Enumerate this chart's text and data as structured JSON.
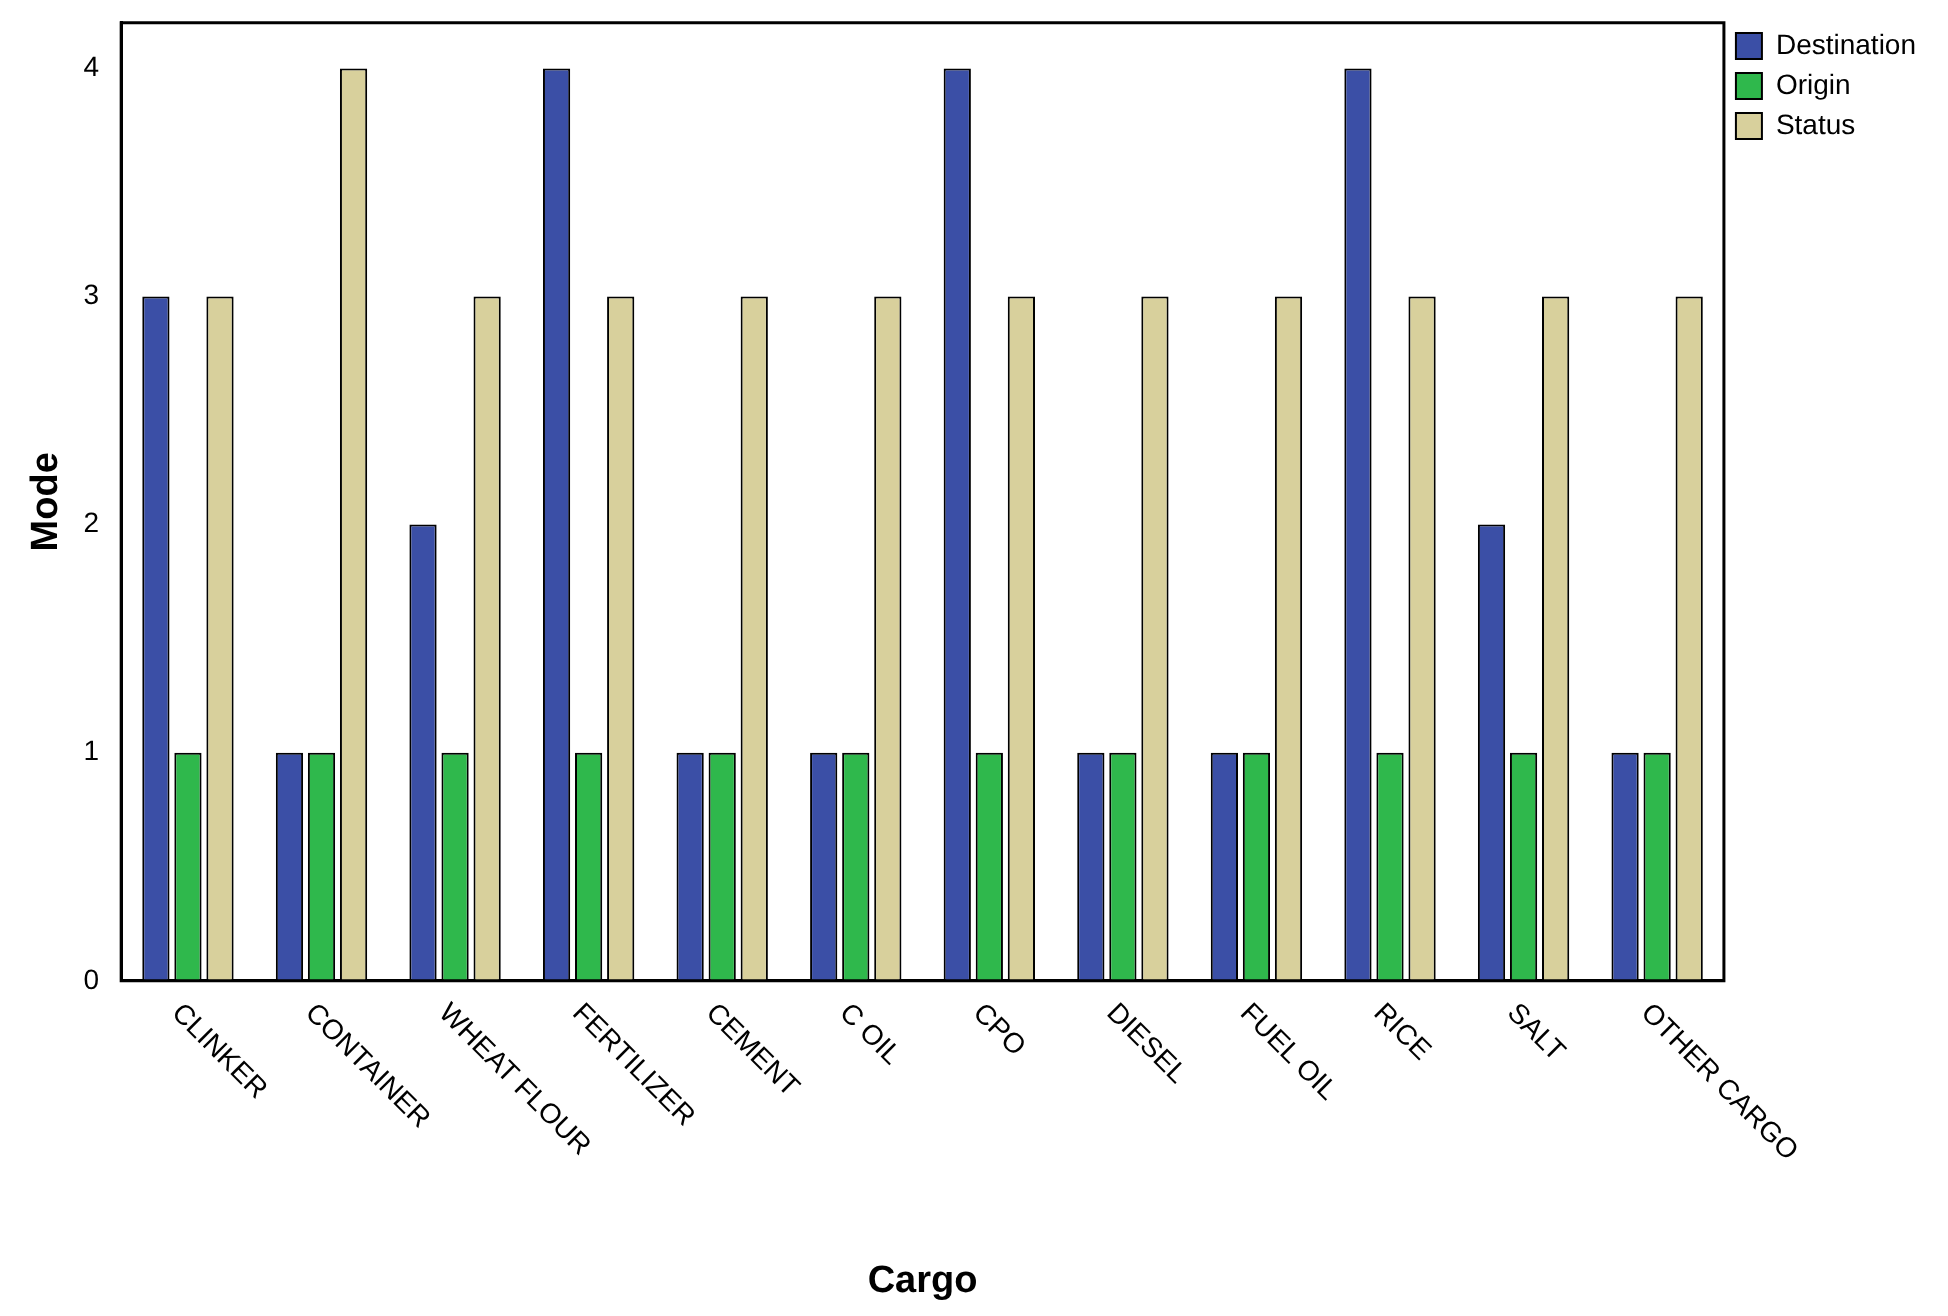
{
  "chart_data": {
    "type": "bar",
    "xlabel": "Cargo",
    "ylabel": "Mode",
    "categories": [
      "CLINKER",
      "CONTAINER",
      "WHEAT FLOUR",
      "FERTILIZER",
      "CEMENT",
      "C OIL",
      "CPO",
      "DIESEL",
      "FUEL OIL",
      "RICE",
      "SALT",
      "OTHER CARGO"
    ],
    "series": [
      {
        "name": "Destination",
        "color": "#3b4fa6",
        "values": [
          3,
          1,
          2,
          4,
          1,
          1,
          4,
          1,
          1,
          4,
          2,
          1
        ]
      },
      {
        "name": "Origin",
        "color": "#2fb84c",
        "values": [
          1,
          1,
          1,
          1,
          1,
          1,
          1,
          1,
          1,
          1,
          1,
          1
        ]
      },
      {
        "name": "Status",
        "color": "#d8d09c",
        "values": [
          3,
          4,
          3,
          3,
          3,
          3,
          3,
          3,
          3,
          3,
          3,
          3
        ]
      }
    ],
    "ylim": [
      0,
      4.2
    ],
    "yticks": [
      0,
      1,
      2,
      3,
      4
    ],
    "grid": false,
    "legend": "top right"
  }
}
